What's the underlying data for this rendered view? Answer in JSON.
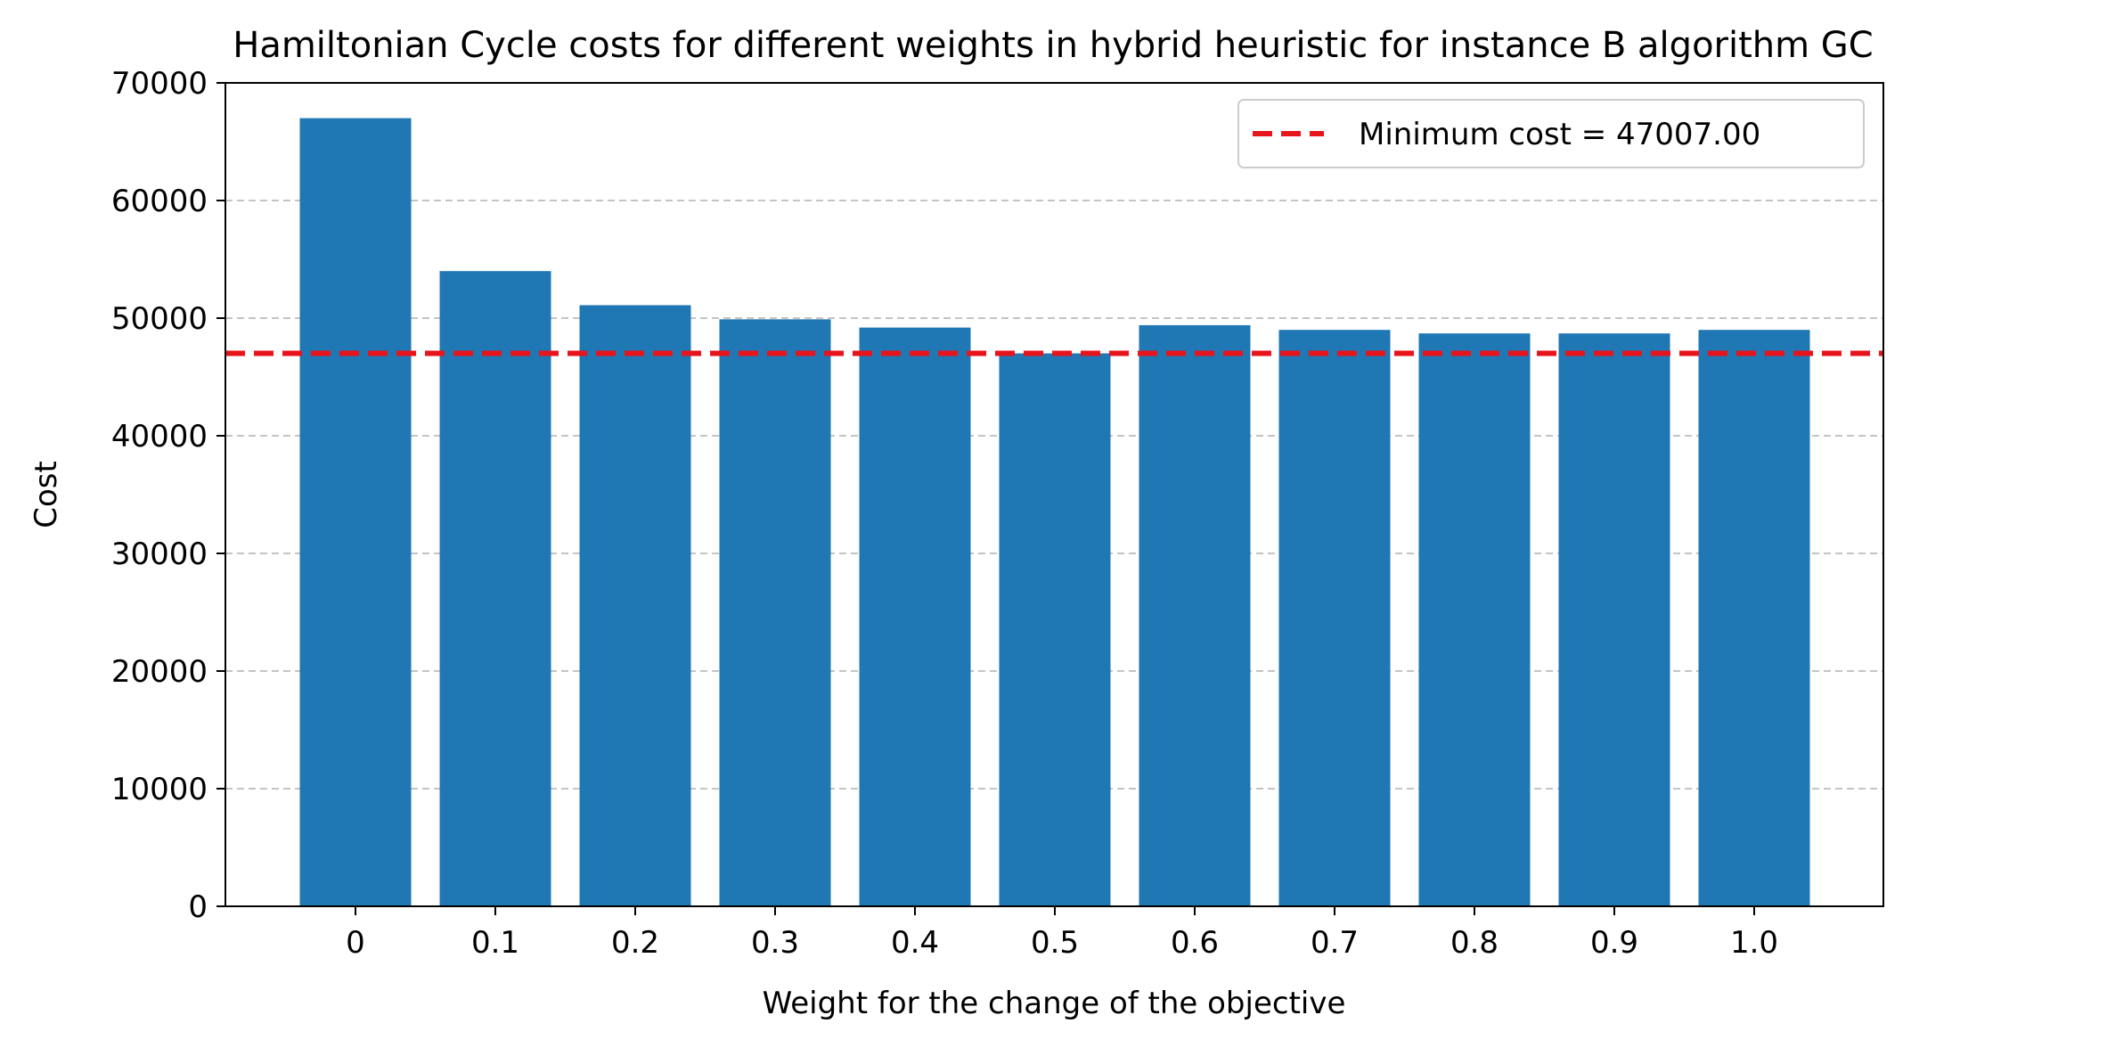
{
  "chart_data": {
    "type": "bar",
    "title": "Hamiltonian Cycle costs for different weights in hybrid heuristic for instance B algorithm GC",
    "xlabel": "Weight for the change of the objective",
    "ylabel": "Cost",
    "categories": [
      "0",
      "0.1",
      "0.2",
      "0.3",
      "0.4",
      "0.5",
      "0.6",
      "0.7",
      "0.8",
      "0.9",
      "1.0"
    ],
    "values": [
      67000,
      54000,
      51100,
      49900,
      49200,
      47007,
      49400,
      49000,
      48700,
      48700,
      49000
    ],
    "ylim": [
      0,
      70000
    ],
    "yticks": [
      0,
      10000,
      20000,
      30000,
      40000,
      50000,
      60000,
      70000
    ],
    "ytick_labels": [
      "0",
      "10000",
      "20000",
      "30000",
      "40000",
      "50000",
      "60000",
      "70000"
    ],
    "grid": "horizontal dashed",
    "bar_color": "#1f77b4",
    "reference_line": {
      "value": 47007.0,
      "label": "Minimum cost = 47007.00",
      "color": "#e8141c",
      "style": "dashed"
    },
    "legend": {
      "position": "top-right"
    }
  }
}
